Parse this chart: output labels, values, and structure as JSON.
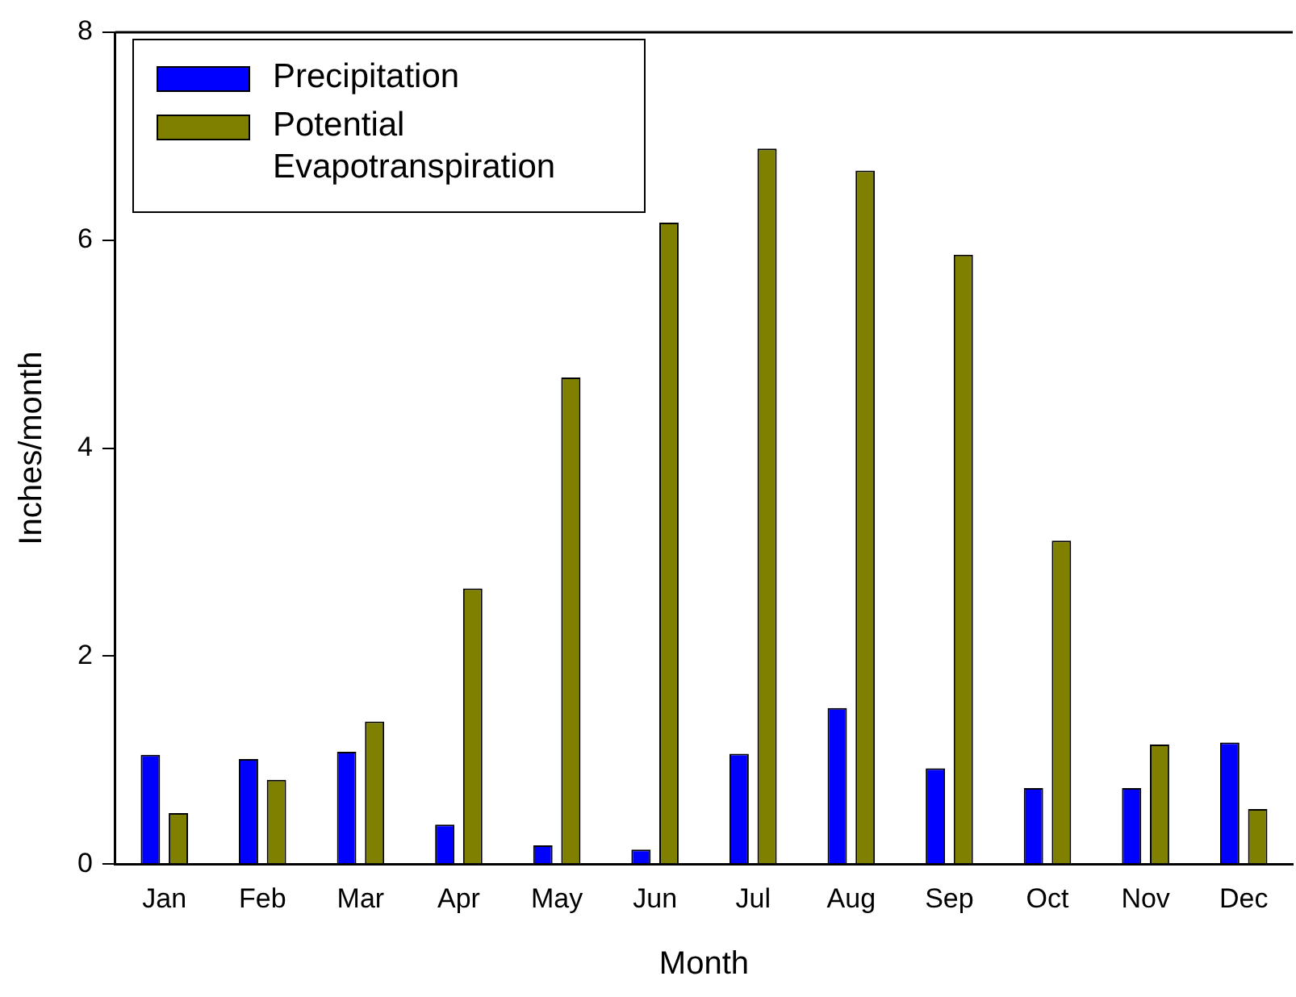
{
  "chart_data": {
    "type": "bar",
    "xlabel": "Month",
    "ylabel": "Inches/month",
    "categories": [
      "Jan",
      "Feb",
      "Mar",
      "Apr",
      "May",
      "Jun",
      "Jul",
      "Aug",
      "Sep",
      "Oct",
      "Nov",
      "Dec"
    ],
    "series": [
      {
        "name": "Precipitation",
        "color": "#0000ff",
        "values": [
          1.05,
          1.01,
          1.08,
          0.38,
          0.18,
          0.14,
          1.06,
          1.5,
          0.92,
          0.73,
          0.73,
          1.17
        ]
      },
      {
        "name": "Potential Evapotranspiration",
        "color": "#808000",
        "values": [
          0.49,
          0.81,
          1.37,
          2.65,
          4.68,
          6.17,
          6.88,
          6.67,
          5.86,
          3.11,
          1.15,
          0.53
        ]
      }
    ],
    "ylim": [
      0,
      8
    ],
    "yticks": [
      0,
      2,
      4,
      6,
      8
    ],
    "grid": false,
    "legend": "top left"
  }
}
